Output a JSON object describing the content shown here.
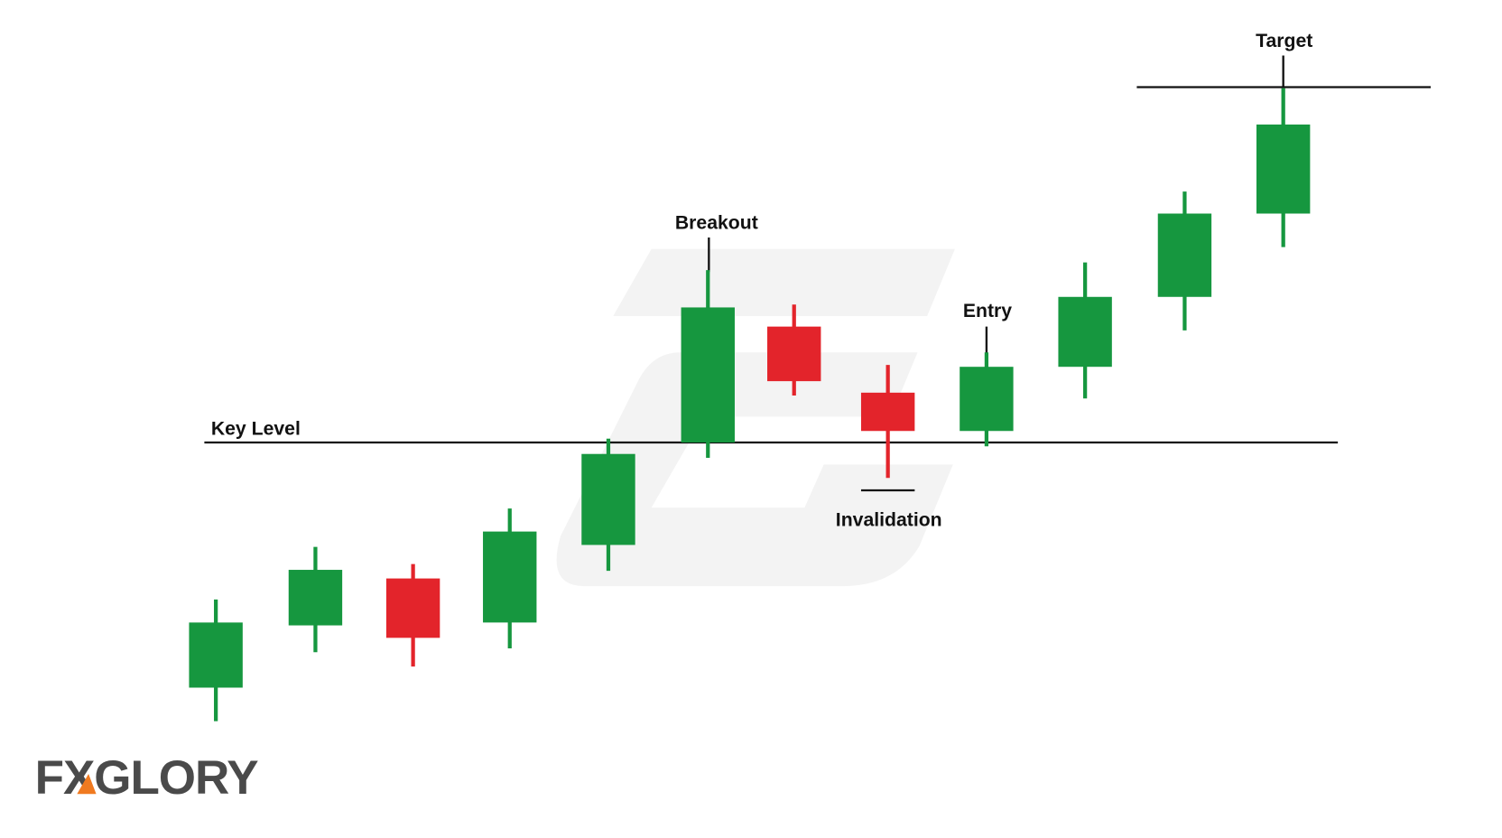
{
  "labels": {
    "target": "Target",
    "breakout": "Breakout",
    "entry": "Entry",
    "key_level": "Key Level",
    "invalidation": "Invalidation"
  },
  "logo": "FXGLORY"
}
